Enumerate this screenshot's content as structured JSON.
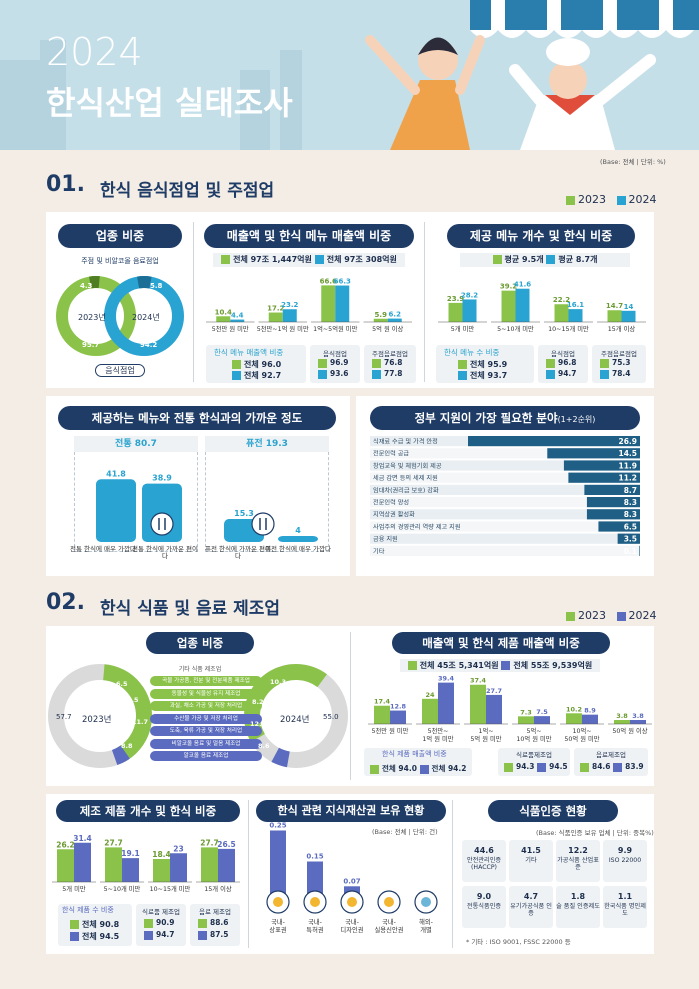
{
  "header": {
    "year": "2024",
    "title": "한식산업 실태조사",
    "base_note": "(Base: 전체 | 단위: %)"
  },
  "legend": {
    "y2023": "2023",
    "y2024": "2024"
  },
  "colors": {
    "c2023": "#8bc34a",
    "c2024_s1": "#29a3d1",
    "c2024_s2": "#5b6bbf",
    "navy": "#1f3c66"
  },
  "s1": {
    "num": "01.",
    "title": "한식 음식점업 및 주점업",
    "industry": {
      "title": "업종 비중",
      "pub_label": "주점 및 비알코올 음료점업",
      "rest_label": "음식점업",
      "y2023_label": "2023년",
      "y2024_label": "2024년",
      "pub2023": "4.3",
      "rest2023": "95.7",
      "pub2024": "5.8",
      "rest2024": "94.2"
    },
    "sales": {
      "title": "매출액 및 한식 메뉴 매출액 비중",
      "total2023": "전체 97조 1,447억원",
      "total2024": "전체 97조 308억원",
      "ratio_title": "한식 메뉴 매출액 비중",
      "overall2023": "전체 96.0",
      "overall2024": "전체 92.7",
      "rest_label": "음식점업",
      "rest2023": "96.9",
      "rest2024": "93.6",
      "pub_label": "주점음료점업",
      "pub2023": "76.8",
      "pub2024": "77.8"
    },
    "menu": {
      "title": "제공 메뉴 개수 및 한식 비중",
      "avg2023": "평균 9.5개",
      "avg2024": "평균 8.7개",
      "ratio_title": "한식 메뉴 수 비중",
      "overall2023": "전체 95.9",
      "overall2024": "전체 93.7",
      "rest_label": "음식점업",
      "rest2023": "96.8",
      "rest2024": "94.7",
      "pub_label": "주점음료점업",
      "pub2023": "75.3",
      "pub2024": "78.4"
    },
    "closeness": {
      "title": "제공하는 메뉴와 전통 한식과의 가까운 정도",
      "trad_header": "전통 80.7",
      "fusion_header": "퓨전 19.3",
      "labels": [
        "전통 한식에 매우 가깝다",
        "전통 한식에 가까운 편이다",
        "퓨전 한식에 가까운 편이다",
        "퓨전 한식에 매우 가깝다"
      ]
    },
    "support": {
      "title": "정부 지원이 가장 필요한 분야",
      "title_suffix": "(1+2순위)"
    }
  },
  "s2": {
    "num": "02.",
    "title": "한식 식품 및 음료 제조업",
    "industry": {
      "title": "업종 비중",
      "y2023_label": "2023년",
      "y2024_label": "2024년",
      "other_label": "기타 식품 제조업",
      "other2023": "57.7",
      "other2024": "55.0",
      "categories": [
        "곡물 가공품, 전분 및 전분제품 제조업",
        "동물성 및 식물성 유지 제조업",
        "과실, 채소 가공 및 저장 처리업",
        "수산물 가공 및 저장 처리업",
        "도축, 육류 가공 및 저장 처리업",
        "비알코올 음료 및 얼음 제조업",
        "알코올 음료 제조업"
      ],
      "v2023": [
        "6.5",
        "9.5",
        "11.7",
        "8.8",
        "",
        "",
        ""
      ],
      "v2024": [
        "10.3",
        "8.2",
        "12.0",
        "8.6",
        "",
        "",
        ""
      ]
    },
    "sales": {
      "title": "매출액 및 한식 제품 매출액 비중",
      "total2023": "전체 45조 5,341억원",
      "total2024": "전체 55조 9,539억원",
      "ratio_title": "한식 제품 매출액 비중",
      "overall2023": "전체 94.0",
      "overall2024": "전체 94.2",
      "food_label": "식료품제조업",
      "food2023": "94.3",
      "food2024": "94.5",
      "bev_label": "음료제조업",
      "bev2023": "84.6",
      "bev2024": "83.9"
    },
    "products": {
      "title": "제조 제품 개수 및 한식 비중",
      "ratio_title": "한식 제품 수 비중",
      "overall2023": "전체 90.8",
      "overall2024": "전체 94.5",
      "food_label": "식료품 제조업",
      "food2023": "90.9",
      "food2024": "94.7",
      "bev_label": "음료 제조업",
      "bev2023": "88.6",
      "bev2024": "87.5"
    },
    "ip": {
      "title": "한식 관련 지식재산권 보유 현황",
      "note": "(Base: 전체 | 단위: 건)"
    },
    "cert": {
      "title": "식품인증 현황",
      "note": "(Base: 식품인증 보유 업체 | 단위: 중복%)",
      "items": [
        {
          "value": "44.6",
          "label": "안전관리인증 (HACCP)"
        },
        {
          "value": "41.5",
          "label": "기타"
        },
        {
          "value": "12.2",
          "label": "가공식품 산업표준"
        },
        {
          "value": "9.9",
          "label": "ISO 22000"
        },
        {
          "value": "9.0",
          "label": "전통식품인증"
        },
        {
          "value": "4.7",
          "label": "유기가공식품 인증"
        },
        {
          "value": "1.8",
          "label": "술 품질 인증제도"
        },
        {
          "value": "1.1",
          "label": "한국식품 명인제도"
        }
      ],
      "footnote": "* 기타 : ISO 9001, FSSC 22000 등"
    }
  },
  "chart_data": [
    {
      "type": "donut",
      "title": "업종 비중",
      "series": [
        {
          "name": "2023년",
          "categories": [
            "주점 및 비알코올 음료점업",
            "음식점업"
          ],
          "values": [
            4.3,
            95.7
          ]
        },
        {
          "name": "2024년",
          "categories": [
            "주점 및 비알코올 음료점업",
            "음식점업"
          ],
          "values": [
            5.8,
            94.2
          ]
        }
      ]
    },
    {
      "type": "bar",
      "title": "매출액 및 한식 메뉴 매출액 비중",
      "categories": [
        "5천만 원 미만",
        "5천만~1억 원 미만",
        "1억~5억원 미만",
        "5억 원 이상"
      ],
      "series": [
        {
          "name": "2023",
          "values": [
            10.4,
            17.2,
            66.6,
            5.9
          ]
        },
        {
          "name": "2024",
          "values": [
            4.4,
            23.2,
            66.3,
            6.2
          ]
        }
      ]
    },
    {
      "type": "bar",
      "title": "제공 메뉴 개수 및 한식 비중",
      "categories": [
        "5개 미만",
        "5~10개 미만",
        "10~15개 미만",
        "15개 이상"
      ],
      "series": [
        {
          "name": "2023",
          "values": [
            23.9,
            39.2,
            22.2,
            14.7
          ]
        },
        {
          "name": "2024",
          "values": [
            28.2,
            41.6,
            16.1,
            14.0
          ]
        }
      ]
    },
    {
      "type": "bar",
      "title": "제공하는 메뉴와 전통 한식과의 가까운 정도",
      "categories": [
        "전통 한식에 매우 가깝다",
        "전통 한식에 가까운 편이다",
        "퓨전 한식에 가까운 편이다",
        "퓨전 한식에 매우 가깝다"
      ],
      "values": [
        41.8,
        38.9,
        15.3,
        4.0
      ]
    },
    {
      "type": "bar",
      "title": "정부 지원이 가장 필요한 분야",
      "categories": [
        "식재료 수급 및 가격 안정",
        "전문인력 공급",
        "창업교육 및 체험기회 제공",
        "세금 감면 등의 세제 지원",
        "임대차(권리금 보호) 강화",
        "전문인력 양성",
        "지역상권 활성화",
        "사업주의 경영관리 역량 제고 지원",
        "금융 지원",
        "기타"
      ],
      "values": [
        26.9,
        14.5,
        11.9,
        11.2,
        8.7,
        8.3,
        8.3,
        6.5,
        3.5,
        0.1
      ]
    },
    {
      "type": "donut",
      "title": "업종 비중 (제조업)",
      "series": [
        {
          "name": "2023년",
          "categories": [
            "곡물 가공품, 전분 및 전분제품 제조업",
            "동물성 및 식물성 유지 제조업",
            "과실, 채소 가공 및 저장 처리업",
            "수산물 가공 및 저장 처리업",
            "기타 식품 제조업"
          ],
          "values": [
            6.5,
            9.5,
            11.7,
            8.8,
            57.7
          ]
        },
        {
          "name": "2024년",
          "categories": [
            "곡물 가공품, 전분 및 전분제품 제조업",
            "동물성 및 식물성 유지 제조업",
            "과실, 채소 가공 및 저장 처리업",
            "수산물 가공 및 저장 처리업",
            "기타 식품 제조업"
          ],
          "values": [
            10.3,
            8.2,
            12.0,
            8.6,
            55.0
          ]
        }
      ]
    },
    {
      "type": "bar",
      "title": "매출액 및 한식 제품 매출액 비중",
      "categories": [
        "5천만 원 미만",
        "5천만~1억 원 미만",
        "1억~5억 원 미만",
        "5억~10억 원 미만",
        "10억~50억 원 미만",
        "50억 원 이상"
      ],
      "series": [
        {
          "name": "2023",
          "values": [
            17.4,
            24.0,
            37.4,
            7.3,
            10.2,
            3.8
          ]
        },
        {
          "name": "2024",
          "values": [
            12.8,
            39.4,
            27.7,
            7.5,
            8.9,
            3.8
          ]
        }
      ]
    },
    {
      "type": "bar",
      "title": "제조 제품 개수 및 한식 비중",
      "categories": [
        "5개 미만",
        "5~10개 미만",
        "10~15개 미만",
        "15개 이상"
      ],
      "series": [
        {
          "name": "2023",
          "values": [
            26.2,
            27.7,
            18.4,
            27.7
          ]
        },
        {
          "name": "2024",
          "values": [
            31.4,
            19.1,
            23.0,
            26.5
          ]
        }
      ]
    },
    {
      "type": "bar",
      "title": "한식 관련 지식재산권 보유 현황",
      "categories": [
        "국내-상표권",
        "국내-특허권",
        "국내-디자인권",
        "국내-실용신안권",
        "해외-개별"
      ],
      "values": [
        0.25,
        0.15,
        0.07,
        0.01,
        0.01
      ]
    }
  ]
}
